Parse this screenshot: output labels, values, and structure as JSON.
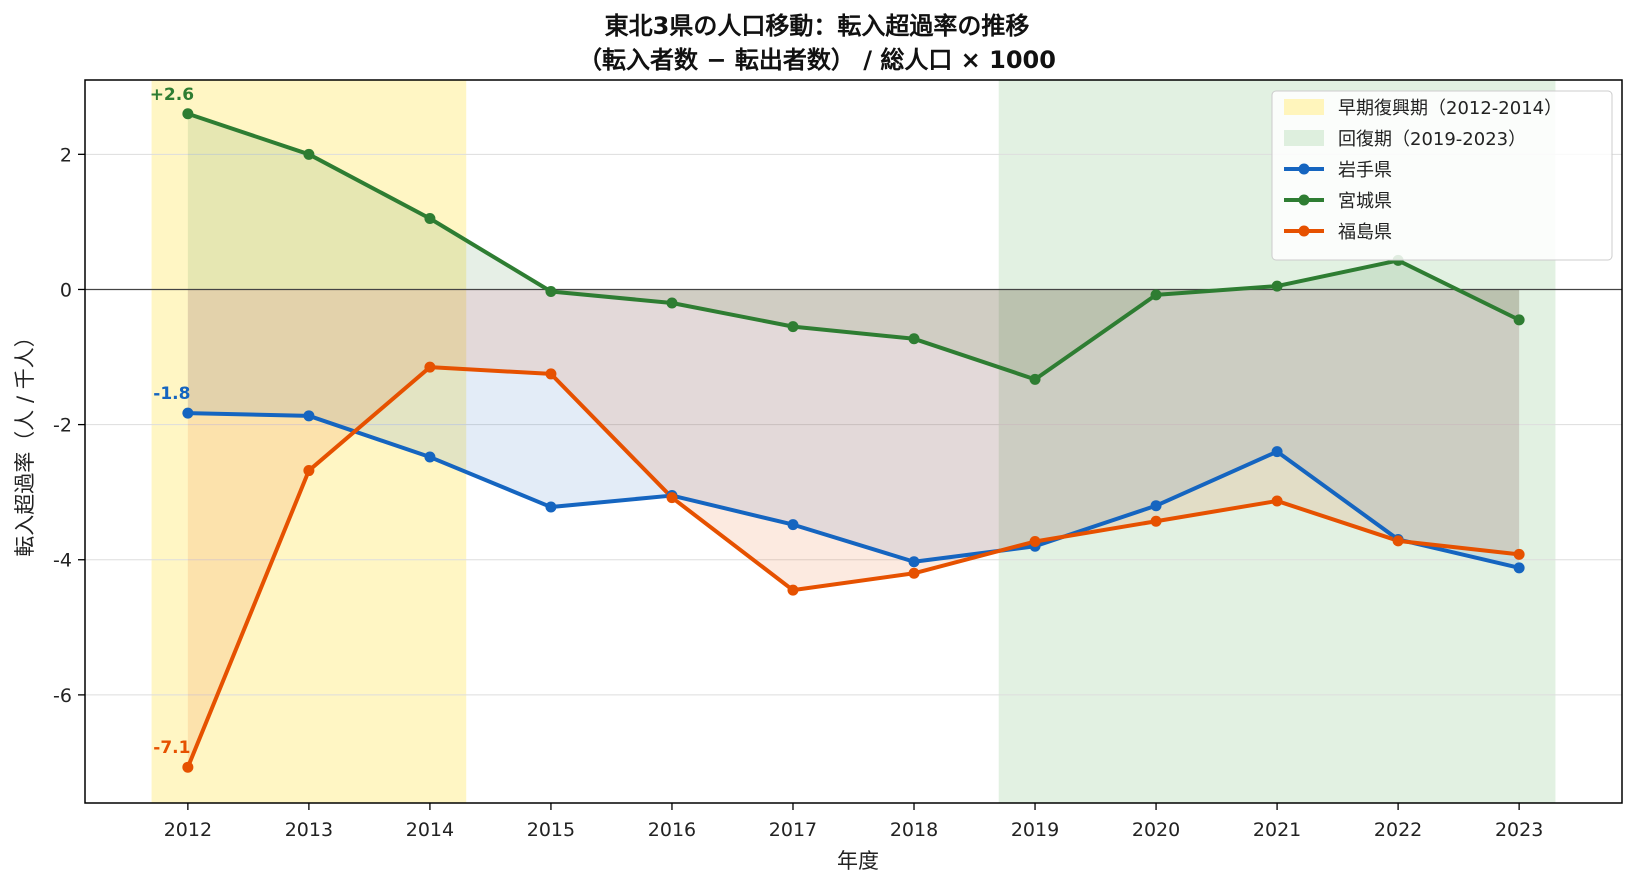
{
  "chart_data": {
    "type": "line",
    "title_line1": "東北3県の人口移動：転入超過率の推移",
    "title_line2": "（転入者数 − 転出者数） / 総人口 × 1000",
    "xlabel": "年度",
    "ylabel": "転入超過率（人 / 千人）",
    "x": [
      2012,
      2013,
      2014,
      2015,
      2016,
      2017,
      2018,
      2019,
      2020,
      2021,
      2022,
      2023
    ],
    "xlim": [
      2011.15,
      2023.85
    ],
    "ylim": [
      -7.6,
      3.1
    ],
    "yticks": [
      2,
      0,
      -2,
      -4,
      -6
    ],
    "ytick_labels": [
      "2",
      "0",
      "-2",
      "-4",
      "-6"
    ],
    "xtick_labels": [
      "2012",
      "2013",
      "2014",
      "2015",
      "2016",
      "2017",
      "2018",
      "2019",
      "2020",
      "2021",
      "2022",
      "2023"
    ],
    "grid": "horizontal",
    "legend_position": "top-right",
    "series": [
      {
        "name": "岩手県",
        "color": "#1565c0",
        "values": [
          -1.83,
          -1.87,
          -2.48,
          -3.22,
          -3.05,
          -3.48,
          -4.03,
          -3.8,
          -3.2,
          -2.4,
          -3.7,
          -4.12
        ]
      },
      {
        "name": "宮城県",
        "color": "#2e7d32",
        "values": [
          2.6,
          2.0,
          1.05,
          -0.03,
          -0.2,
          -0.55,
          -0.73,
          -1.33,
          -0.08,
          0.05,
          0.43,
          -0.45
        ]
      },
      {
        "name": "福島県",
        "color": "#e65100",
        "values": [
          -7.07,
          -2.68,
          -1.15,
          -1.25,
          -3.08,
          -4.45,
          -4.2,
          -3.73,
          -3.43,
          -3.13,
          -3.72,
          -3.92
        ]
      }
    ],
    "bands": [
      {
        "label": "早期復興期（2012-2014）",
        "from": 2011.7,
        "to": 2014.3,
        "color": "#fff3b0"
      },
      {
        "label": "回復期（2019-2023）",
        "from": 2018.7,
        "to": 2023.3,
        "color": "#d8ecd8"
      }
    ],
    "annotations": [
      {
        "text": "+2.6",
        "x": 2012,
        "y": 2.6,
        "color": "#2e7d32"
      },
      {
        "text": "-1.8",
        "x": 2012,
        "y": -1.83,
        "color": "#1565c0"
      },
      {
        "text": "-7.1",
        "x": 2012,
        "y": -7.07,
        "color": "#e65100"
      }
    ]
  }
}
